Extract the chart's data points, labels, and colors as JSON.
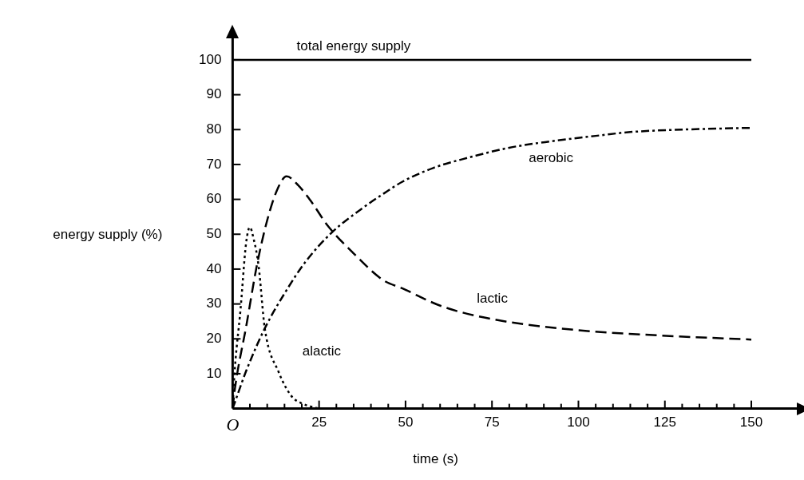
{
  "chart_data": {
    "type": "line",
    "xlabel": "time (s)",
    "ylabel": "energy supply (%)",
    "xlim": [
      0,
      165
    ],
    "ylim": [
      0,
      108
    ],
    "xticks": [
      {
        "value": 0,
        "label": "O"
      },
      {
        "value": 5,
        "label": null
      },
      {
        "value": 10,
        "label": null
      },
      {
        "value": 15,
        "label": null
      },
      {
        "value": 20,
        "label": null
      },
      25,
      {
        "value": 30,
        "label": null
      },
      {
        "value": 35,
        "label": null
      },
      {
        "value": 40,
        "label": null
      },
      {
        "value": 45,
        "label": null
      },
      50,
      {
        "value": 55,
        "label": null
      },
      {
        "value": 60,
        "label": null
      },
      {
        "value": 65,
        "label": null
      },
      {
        "value": 70,
        "label": null
      },
      75,
      {
        "value": 80,
        "label": null
      },
      {
        "value": 85,
        "label": null
      },
      {
        "value": 90,
        "label": null
      },
      {
        "value": 95,
        "label": null
      },
      100,
      {
        "value": 105,
        "label": null
      },
      {
        "value": 110,
        "label": null
      },
      {
        "value": 115,
        "label": null
      },
      {
        "value": 120,
        "label": null
      },
      125,
      {
        "value": 130,
        "label": null
      },
      {
        "value": 135,
        "label": null
      },
      {
        "value": 140,
        "label": null
      },
      {
        "value": 145,
        "label": null
      },
      150
    ],
    "yticks": [
      10,
      20,
      30,
      40,
      50,
      60,
      70,
      80,
      90,
      100
    ],
    "grid": false,
    "legend": false,
    "marker": "none",
    "series": [
      {
        "name": "total energy supply",
        "color": "#000000",
        "line_style": "solid",
        "x": [
          0,
          150
        ],
        "values": [
          100,
          100
        ]
      },
      {
        "name": "alactic",
        "color": "#000000",
        "line_style": "dotted",
        "x": [
          0,
          0.5,
          2.3,
          3.9,
          5,
          6,
          7.5,
          9.3,
          13.3,
          17,
          20,
          23,
          25
        ],
        "values": [
          0,
          9.5,
          28.6,
          47.5,
          52,
          49,
          41,
          23,
          10.5,
          3.6,
          1.5,
          0.5,
          0
        ]
      },
      {
        "name": "lactic",
        "color": "#000000",
        "line_style": "dashed",
        "x": [
          0,
          0.7,
          4,
          7,
          10,
          13,
          15.6,
          19,
          23,
          27.3,
          35,
          43.6,
          49,
          60.6,
          76,
          99.6,
          123,
          150
        ],
        "values": [
          0,
          6,
          24,
          41,
          54,
          63,
          66.6,
          64,
          59,
          52.7,
          44.5,
          36.8,
          34.5,
          29.3,
          25.5,
          22.5,
          21,
          19.8
        ]
      },
      {
        "name": "aerobic",
        "color": "#000000",
        "line_style": "dashdot",
        "x": [
          0,
          4,
          9.3,
          15,
          21,
          28.7,
          37.3,
          43.6,
          49,
          58,
          68.3,
          80,
          91.7,
          105,
          115,
          130,
          150
        ],
        "values": [
          0,
          11,
          23,
          33,
          42,
          50.5,
          57.3,
          61.6,
          65,
          69,
          72,
          74.8,
          76.6,
          78.2,
          79.3,
          80,
          80.5
        ]
      }
    ]
  }
}
